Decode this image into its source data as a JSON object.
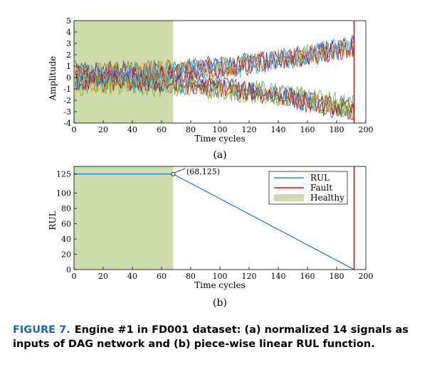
{
  "chart_data": [
    {
      "type": "line",
      "panel_label": "(a)",
      "xlabel": "Time cycles",
      "ylabel": "Amplitude",
      "xlim": [
        0,
        200
      ],
      "ylim": [
        -4,
        5
      ],
      "xticks": [
        "0",
        "20",
        "40",
        "60",
        "80",
        "100",
        "120",
        "140",
        "160",
        "180",
        "200"
      ],
      "yticks": [
        "-4",
        "-3",
        "-2",
        "-1",
        "0",
        "1",
        "2",
        "3",
        "4",
        "5"
      ],
      "healthy_region": [
        0,
        68
      ],
      "fault_cycle": 192,
      "series_description": "14 normalized noisy sensor signals, cycles 1-192; roughly half drift upward to about +3 and half drift downward to about -3 near failure",
      "n_series": 14,
      "series_colors": [
        "#0072bd",
        "#d95319",
        "#edb120",
        "#7e2f8e",
        "#77ac30",
        "#4dbeee",
        "#a2142f"
      ]
    },
    {
      "type": "line",
      "panel_label": "(b)",
      "xlabel": "Time cycles",
      "ylabel": "RUL",
      "xlim": [
        0,
        200
      ],
      "ylim": [
        0,
        135
      ],
      "xticks": [
        "0",
        "20",
        "40",
        "60",
        "80",
        "100",
        "120",
        "140",
        "160",
        "180",
        "200"
      ],
      "yticks": [
        "0",
        "20",
        "40",
        "60",
        "80",
        "100",
        "125"
      ],
      "series": [
        {
          "name": "RUL",
          "color": "#0072bd",
          "x": [
            0,
            68,
            192
          ],
          "y": [
            125,
            125,
            0
          ]
        }
      ],
      "fault": {
        "name": "Fault",
        "color": "#ff0000",
        "x": 192
      },
      "healthy": {
        "name": "Healthy",
        "color": "#cedcad",
        "range": [
          0,
          68
        ]
      },
      "annotation": {
        "text": "(68,125)",
        "x": 68,
        "y": 125
      },
      "legend": [
        "RUL",
        "Fault",
        "Healthy"
      ],
      "legend_position": "top-right"
    }
  ],
  "caption": {
    "label": "FIGURE 7.",
    "text": "Engine #1 in FD001 dataset: (a) normalized 14 signals as inputs of DAG network and (b) piece-wise linear RUL function."
  }
}
